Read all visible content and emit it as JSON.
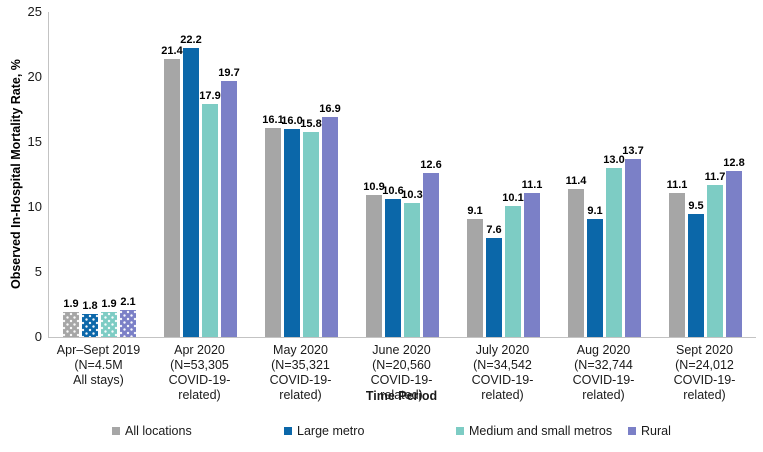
{
  "chart_data": {
    "type": "bar",
    "title": "",
    "xlabel": "Time Period",
    "ylabel": "Observed In-Hospital Mortality Rate, %",
    "ylim": [
      0,
      25
    ],
    "yticks": [
      0,
      5,
      10,
      15,
      20,
      25
    ],
    "grid": false,
    "legend_position": "bottom",
    "value_label_decimals": 1,
    "patterned_category_index": 0,
    "categories": [
      [
        "Apr–Sept 2019",
        "(N=4.5M",
        "All stays)"
      ],
      [
        "Apr 2020",
        "(N=53,305",
        "COVID-19-related)"
      ],
      [
        "May 2020",
        "(N=35,321",
        "COVID-19-related)"
      ],
      [
        "June 2020",
        "(N=20,560",
        "COVID-19-related)"
      ],
      [
        "July 2020",
        "(N=34,542",
        "COVID-19-related)"
      ],
      [
        "Aug 2020",
        "(N=32,744",
        "COVID-19-related)"
      ],
      [
        "Sept 2020",
        "(N=24,012",
        "COVID-19-related)"
      ]
    ],
    "series": [
      {
        "name": "All locations",
        "color": "#a6a6a6",
        "values": [
          1.9,
          21.4,
          16.1,
          10.9,
          9.1,
          11.4,
          11.1
        ]
      },
      {
        "name": "Large metro",
        "color": "#0b67a9",
        "values": [
          1.8,
          22.2,
          16.0,
          10.6,
          7.6,
          9.1,
          9.5
        ]
      },
      {
        "name": "Medium and small metros",
        "color": "#7dccc4",
        "values": [
          1.9,
          17.9,
          15.8,
          10.3,
          10.1,
          13.0,
          11.7
        ]
      },
      {
        "name": "Rural",
        "color": "#7b80c7",
        "values": [
          2.1,
          19.7,
          16.9,
          12.6,
          11.1,
          13.7,
          12.8
        ]
      }
    ]
  }
}
